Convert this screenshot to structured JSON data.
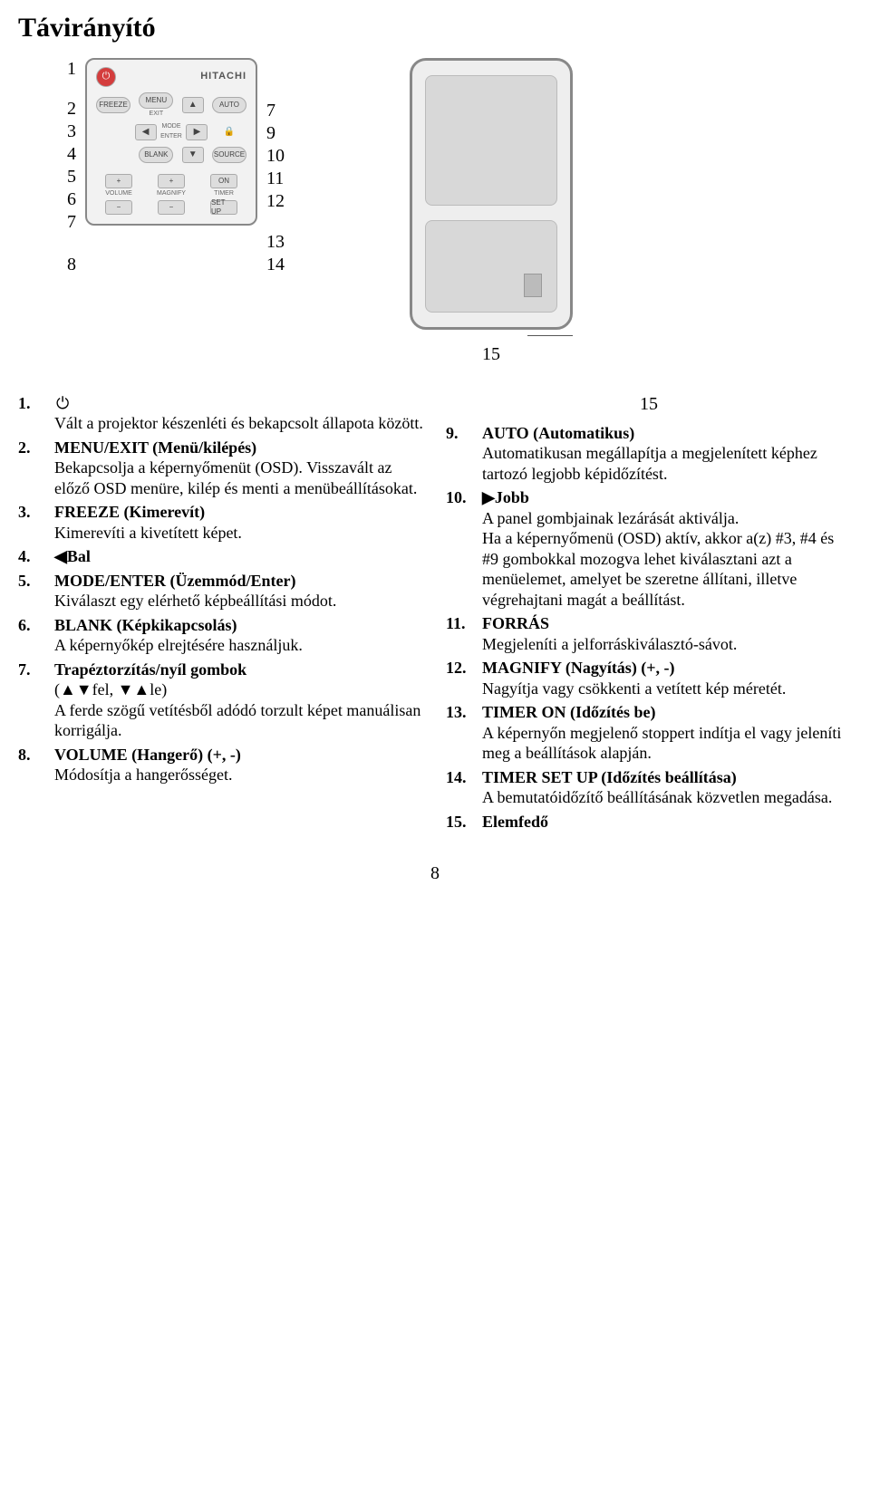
{
  "page": {
    "title": "Távirányító",
    "footer": "8"
  },
  "remote": {
    "brand": "HITACHI",
    "buttons": {
      "freeze": "FREEZE",
      "menu": "MENU",
      "exit": "EXIT",
      "auto": "AUTO",
      "mode": "MODE",
      "enter": "ENTER",
      "blank": "BLANK",
      "source": "SOURCE",
      "volume": "VOLUME",
      "magnify": "MAGNIFY",
      "timer": "TIMER",
      "on": "ON",
      "setup": "SET UP"
    },
    "left_labels": [
      "1",
      "2",
      "3",
      "4",
      "5",
      "6",
      "7",
      "8"
    ],
    "right_labels": [
      "7",
      "9",
      "10",
      "11",
      "12",
      "13",
      "14"
    ],
    "back_pointer": "15"
  },
  "left_list": [
    {
      "num": "1.",
      "title": "",
      "glyph": "⏻",
      "body": "Vált a projektor készenléti és bekapcsolt állapota között."
    },
    {
      "num": "2.",
      "title": "MENU/EXIT (Menü/kilépés)",
      "body": "Bekapcsolja a képernyőmenüt (OSD). Visszavált az előző OSD menüre, kilép és menti a menübeállításokat."
    },
    {
      "num": "3.",
      "title": "FREEZE (Kimerevít)",
      "body": "Kimerevíti a kivetített képet."
    },
    {
      "num": "4.",
      "title": "◀Bal",
      "body": ""
    },
    {
      "num": "5.",
      "title": "MODE/ENTER (Üzemmód/Enter)",
      "body": "Kiválaszt egy elérhető képbeállítási módot."
    },
    {
      "num": "6.",
      "title": "BLANK (Képkikapcsolás)",
      "body": "A képernyőkép elrejtésére használjuk."
    },
    {
      "num": "7.",
      "title": "Trapéztorzítás/nyíl gombok",
      "body": "(▲▼fel, ▼▲le)\nA ferde szögű vetítésből adódó torzult képet manuálisan korrigálja."
    },
    {
      "num": "8.",
      "title": "VOLUME (Hangerő) (+, -)",
      "body": "Módosítja a hangerősséget."
    }
  ],
  "right_header_label": "15",
  "right_list": [
    {
      "num": "9.",
      "title": "AUTO (Automatikus)",
      "body": "Automatikusan megállapítja a megjelenített képhez tartozó legjobb képidőzítést."
    },
    {
      "num": "10.",
      "title": "▶Jobb",
      "body": "A panel gombjainak lezárását aktiválja.\nHa a képernyőmenü (OSD) aktív, akkor a(z) #3, #4 és #9 gombokkal mozogva lehet kiválasztani azt a menüelemet, amelyet be szeretne állítani, illetve végrehajtani magát a beállítást."
    },
    {
      "num": "11.",
      "title": "FORRÁS",
      "body": "Megjeleníti a jelforráskiválasztó-sávot."
    },
    {
      "num": "12.",
      "title": "MAGNIFY (Nagyítás) (+, -)",
      "body": "Nagyítja vagy csökkenti a vetített kép méretét."
    },
    {
      "num": "13.",
      "title": "TIMER ON (Időzítés be)",
      "body": "A képernyőn megjelenő stoppert indítja el vagy jeleníti meg a beállítások alapján."
    },
    {
      "num": "14.",
      "title": "TIMER SET UP (Időzítés beállítása)",
      "body": "A bemutatóidőzítő beállításának közvetlen megadása."
    },
    {
      "num": "15.",
      "title": "Elemfedő",
      "body": ""
    }
  ]
}
